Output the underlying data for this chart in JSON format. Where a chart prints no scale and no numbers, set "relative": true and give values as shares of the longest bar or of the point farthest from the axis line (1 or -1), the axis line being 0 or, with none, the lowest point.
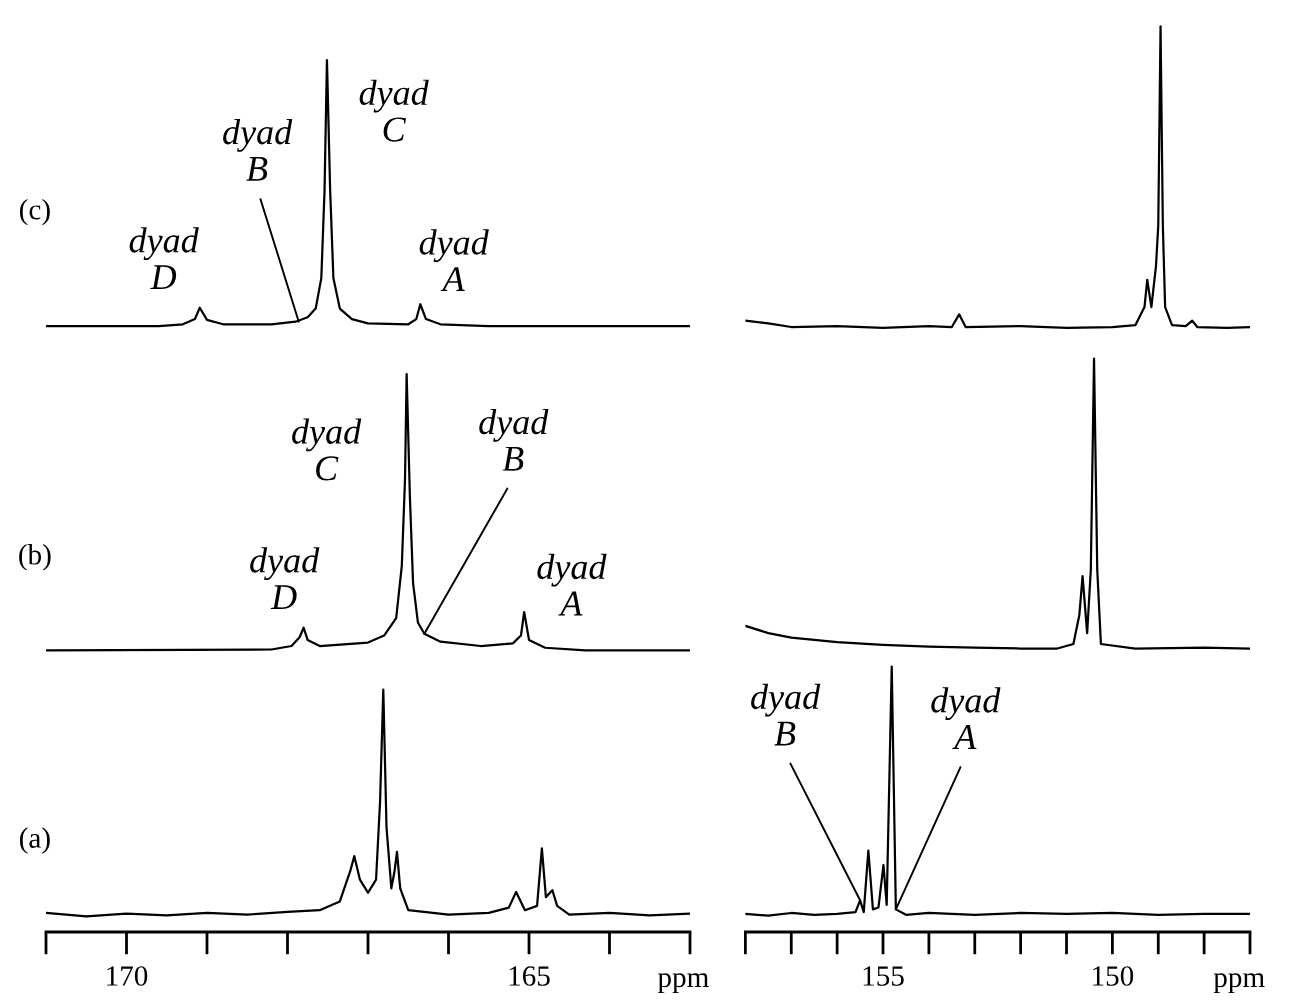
{
  "chart_data": [
    {
      "type": "line",
      "relative": true,
      "xlim": [
        171,
        163
      ],
      "xlabel": "ppm",
      "tick_labels": "x",
      "xticks": [
        {
          "value": 171,
          "label": null
        },
        170,
        {
          "value": 169,
          "label": null
        },
        {
          "value": 168,
          "label": null
        },
        {
          "value": 167,
          "label": null
        },
        {
          "value": 166,
          "label": null
        },
        165,
        {
          "value": 164,
          "label": null
        },
        {
          "value": 163,
          "label": null
        }
      ],
      "series": [
        {
          "color": "#000000",
          "x": [
            171,
            169.6,
            169.3,
            169.15,
            169.09,
            169.0,
            168.8,
            168.2,
            167.9,
            167.75,
            167.65,
            167.58,
            167.54,
            167.51,
            167.47,
            167.43,
            167.35,
            167.2,
            167.0,
            166.5,
            166.4,
            166.35,
            166.28,
            166.1,
            165.5,
            163
          ],
          "values": [
            0.695,
            0.695,
            0.697,
            0.703,
            0.716,
            0.702,
            0.697,
            0.697,
            0.7,
            0.705,
            0.715,
            0.75,
            0.85,
            1.0,
            0.85,
            0.75,
            0.715,
            0.703,
            0.698,
            0.697,
            0.703,
            0.72,
            0.703,
            0.697,
            0.695,
            0.695
          ]
        },
        {
          "color": "#000000",
          "x": [
            171,
            168.2,
            167.95,
            167.85,
            167.8,
            167.75,
            167.6,
            167.0,
            166.8,
            166.65,
            166.58,
            166.54,
            166.52,
            166.48,
            166.44,
            166.38,
            166.3,
            166.1,
            165.6,
            165.2,
            165.1,
            165.06,
            165.0,
            164.8,
            164.3,
            163
          ],
          "values": [
            0.323,
            0.324,
            0.328,
            0.338,
            0.349,
            0.335,
            0.328,
            0.332,
            0.34,
            0.36,
            0.42,
            0.52,
            0.64,
            0.5,
            0.4,
            0.355,
            0.342,
            0.333,
            0.328,
            0.331,
            0.34,
            0.367,
            0.335,
            0.326,
            0.323,
            0.323
          ]
        },
        {
          "color": "#000000",
          "x": [
            171,
            170.5,
            170,
            169.5,
            169,
            168.5,
            168,
            167.6,
            167.35,
            167.22,
            167.17,
            167.1,
            167.0,
            166.9,
            166.85,
            166.81,
            166.77,
            166.71,
            166.67,
            166.64,
            166.6,
            166.5,
            166.0,
            165.5,
            165.25,
            165.16,
            165.05,
            164.9,
            164.84,
            164.79,
            164.74,
            164.71,
            164.65,
            164.5,
            164,
            163.5,
            163
          ],
          "values": [
            0.022,
            0.018,
            0.021,
            0.019,
            0.022,
            0.02,
            0.023,
            0.025,
            0.035,
            0.07,
            0.087,
            0.06,
            0.045,
            0.06,
            0.15,
            0.278,
            0.12,
            0.05,
            0.07,
            0.092,
            0.05,
            0.025,
            0.02,
            0.022,
            0.028,
            0.046,
            0.025,
            0.03,
            0.096,
            0.04,
            0.045,
            0.048,
            0.03,
            0.02,
            0.022,
            0.019,
            0.021
          ]
        }
      ],
      "annotations": [
        "(c)",
        "(b)",
        "(a)",
        {
          "text": "dyad\nD",
          "x": 169.09,
          "y": 0.716
        },
        {
          "text": "dyad\nB",
          "x": 167.86,
          "y": 0.7
        },
        {
          "text": "dyad\nC",
          "x": 167.51,
          "y": 1.0
        },
        {
          "text": "dyad\nA",
          "x": 166.35,
          "y": 0.72
        },
        {
          "text": "dyad\nD",
          "x": 167.8,
          "y": 0.349
        },
        {
          "text": "dyad\nC",
          "x": 166.52,
          "y": 0.64
        },
        {
          "text": "dyad\nB",
          "x": 166.3,
          "y": 0.342
        },
        {
          "text": "dyad\nA",
          "x": 165.06,
          "y": 0.367
        }
      ]
    },
    {
      "type": "line",
      "relative": true,
      "xlim": [
        158,
        147
      ],
      "xlabel": "ppm",
      "tick_labels": "x",
      "xticks": [
        {
          "value": 158,
          "label": null
        },
        {
          "value": 157,
          "label": null
        },
        {
          "value": 156,
          "label": null
        },
        155,
        {
          "value": 154,
          "label": null
        },
        {
          "value": 153,
          "label": null
        },
        {
          "value": 152,
          "label": null
        },
        {
          "value": 151,
          "label": null
        },
        150,
        {
          "value": 149,
          "label": null
        },
        {
          "value": 148,
          "label": null
        },
        {
          "value": 147,
          "label": null
        }
      ],
      "series": [
        {
          "color": "#000000",
          "x": [
            158,
            157.5,
            157,
            156,
            155,
            154,
            153.5,
            153.34,
            153.2,
            152,
            151,
            150,
            149.5,
            149.3,
            149.24,
            149.15,
            149.05,
            149.0,
            148.95,
            148.9,
            148.85,
            148.7,
            148.4,
            148.26,
            148.15,
            147.5,
            147
          ],
          "values": [
            0.675,
            0.672,
            0.668,
            0.669,
            0.667,
            0.669,
            0.668,
            0.682,
            0.668,
            0.669,
            0.667,
            0.668,
            0.67,
            0.69,
            0.72,
            0.69,
            0.735,
            0.78,
            1.0,
            0.78,
            0.69,
            0.67,
            0.669,
            0.675,
            0.668,
            0.667,
            0.668
          ]
        },
        {
          "color": "#000000",
          "x": [
            158,
            157.5,
            157,
            156,
            155,
            154,
            153,
            152,
            151.2,
            150.85,
            150.72,
            150.65,
            150.55,
            150.47,
            150.4,
            150.33,
            150.25,
            149.5,
            148,
            147
          ],
          "values": [
            0.338,
            0.33,
            0.325,
            0.32,
            0.317,
            0.315,
            0.314,
            0.313,
            0.313,
            0.318,
            0.35,
            0.393,
            0.33,
            0.4,
            0.633,
            0.4,
            0.318,
            0.313,
            0.314,
            0.313
          ]
        },
        {
          "color": "#000000",
          "x": [
            158,
            157.5,
            157,
            156.5,
            156,
            155.6,
            155.5,
            155.42,
            155.32,
            155.22,
            155.1,
            154.99,
            154.92,
            154.81,
            154.72,
            154.5,
            154,
            153,
            152,
            151,
            150,
            149,
            148,
            147
          ],
          "values": [
            0.02,
            0.018,
            0.021,
            0.019,
            0.02,
            0.022,
            0.035,
            0.022,
            0.09,
            0.025,
            0.027,
            0.074,
            0.03,
            0.293,
            0.025,
            0.019,
            0.021,
            0.019,
            0.021,
            0.02,
            0.021,
            0.019,
            0.02,
            0.02
          ]
        }
      ],
      "annotations": [
        {
          "text": "dyad\nB",
          "x": 155.5,
          "y": 0.035
        },
        {
          "text": "dyad\nA",
          "x": 154.72,
          "y": 0.025
        }
      ]
    }
  ]
}
